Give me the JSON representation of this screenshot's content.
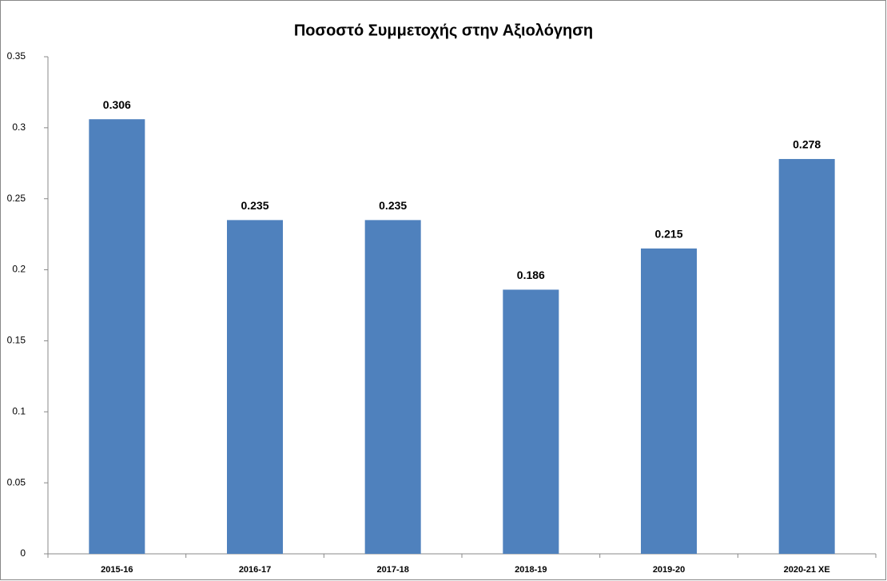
{
  "chart_data": {
    "type": "bar",
    "title": "Ποσοστό Συμμετοχής στην Αξιολόγηση",
    "categories": [
      "2015-16",
      "2016-17",
      "2017-18",
      "2018-19",
      "2019-20",
      "2020-21 ΧΕ"
    ],
    "values": [
      0.306,
      0.235,
      0.235,
      0.186,
      0.215,
      0.278
    ],
    "color": "#4f81bd",
    "ylim": [
      0,
      0.35
    ],
    "yticks": [
      0,
      0.05,
      0.1,
      0.15,
      0.2,
      0.25,
      0.3,
      0.35
    ],
    "grid": false
  }
}
